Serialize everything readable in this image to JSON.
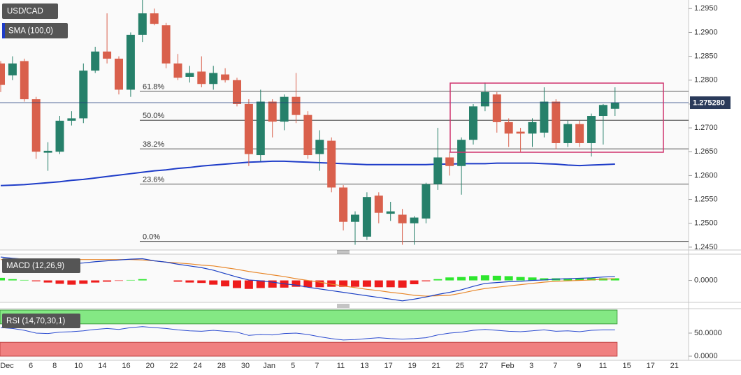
{
  "chart_data": [
    {
      "type": "candlestick",
      "title": "USD/CAD",
      "overlay_name": "SMA (100,0)",
      "up_color": "#26806a",
      "down_color": "#d9604c",
      "sma_color": "#1e3cc8",
      "ylim": [
        1.2444,
        1.2968
      ],
      "yticks": [
        {
          "value": 1.295,
          "label": "1.2950"
        },
        {
          "value": 1.29,
          "label": "1.2900"
        },
        {
          "value": 1.285,
          "label": "1.2850"
        },
        {
          "value": 1.28,
          "label": "1.2800"
        },
        {
          "value": 1.275,
          "label": "1.2750"
        },
        {
          "value": 1.27,
          "label": "1.2700"
        },
        {
          "value": 1.265,
          "label": "1.2650"
        },
        {
          "value": 1.26,
          "label": "1.2600"
        },
        {
          "value": 1.255,
          "label": "1.2550"
        },
        {
          "value": 1.25,
          "label": "1.2500"
        },
        {
          "value": 1.245,
          "label": "1.2450"
        }
      ],
      "open": [
        1.2835,
        1.281,
        1.284,
        1.276,
        1.2648,
        1.265,
        1.2715,
        1.272,
        1.282,
        1.286,
        1.2845,
        1.278,
        1.2895,
        1.294,
        1.2915,
        1.2835,
        1.2807,
        1.2818,
        1.2792,
        1.2812,
        1.28,
        1.275,
        1.2643,
        1.2755,
        1.2713,
        1.2765,
        1.2727,
        1.2645,
        1.2673,
        1.2575,
        1.2503,
        1.2472,
        1.2558,
        1.252,
        1.2518,
        1.25,
        1.251,
        1.2582,
        1.2638,
        1.262,
        1.2675,
        1.2745,
        1.277,
        1.2712,
        1.2692,
        1.2688,
        1.269,
        1.2755,
        1.2668,
        1.2708,
        1.2668,
        1.2725,
        1.274
      ],
      "high": [
        1.284,
        1.285,
        1.2845,
        1.2765,
        1.267,
        1.2725,
        1.2735,
        1.2835,
        1.287,
        1.294,
        1.285,
        1.29,
        1.297,
        1.295,
        1.292,
        1.2855,
        1.283,
        1.285,
        1.283,
        1.2825,
        1.2805,
        1.276,
        1.278,
        1.276,
        1.277,
        1.2815,
        1.2735,
        1.2695,
        1.268,
        1.258,
        1.2525,
        1.2565,
        1.2565,
        1.2545,
        1.253,
        1.2515,
        1.2585,
        1.27,
        1.265,
        1.268,
        1.275,
        1.2795,
        1.2775,
        1.272,
        1.27,
        1.272,
        1.2785,
        1.276,
        1.2715,
        1.2715,
        1.273,
        1.275,
        1.2785
      ],
      "low": [
        1.2775,
        1.28,
        1.2755,
        1.2635,
        1.261,
        1.2645,
        1.2705,
        1.271,
        1.2815,
        1.2835,
        1.277,
        1.2765,
        1.288,
        1.2915,
        1.2825,
        1.28,
        1.2795,
        1.2785,
        1.278,
        1.2795,
        1.2745,
        1.262,
        1.263,
        1.268,
        1.2695,
        1.271,
        1.2635,
        1.261,
        1.2565,
        1.2485,
        1.2455,
        1.2465,
        1.25,
        1.2505,
        1.2455,
        1.2455,
        1.25,
        1.257,
        1.26,
        1.256,
        1.2665,
        1.2735,
        1.269,
        1.266,
        1.265,
        1.266,
        1.268,
        1.2655,
        1.266,
        1.266,
        1.264,
        1.2665,
        1.2725
      ],
      "close": [
        1.279,
        1.2835,
        1.276,
        1.265,
        1.2652,
        1.2715,
        1.272,
        1.282,
        1.286,
        1.2845,
        1.278,
        1.2895,
        1.294,
        1.2918,
        1.2835,
        1.2805,
        1.2815,
        1.2792,
        1.2815,
        1.28,
        1.275,
        1.2645,
        1.2755,
        1.2713,
        1.2765,
        1.2727,
        1.2643,
        1.2675,
        1.2575,
        1.2503,
        1.2518,
        1.2555,
        1.2522,
        1.2525,
        1.25,
        1.2512,
        1.2582,
        1.2638,
        1.262,
        1.2675,
        1.2745,
        1.2775,
        1.2712,
        1.2688,
        1.2688,
        1.2712,
        1.2755,
        1.2668,
        1.2708,
        1.2668,
        1.2725,
        1.2748,
        1.2753
      ],
      "sma": [
        1.2579,
        1.258,
        1.2581,
        1.2583,
        1.2585,
        1.2587,
        1.259,
        1.2592,
        1.2595,
        1.2598,
        1.2601,
        1.2604,
        1.2607,
        1.261,
        1.2612,
        1.2615,
        1.2617,
        1.262,
        1.2622,
        1.2624,
        1.2626,
        1.2628,
        1.2629,
        1.263,
        1.263,
        1.2629,
        1.2628,
        1.2627,
        1.2626,
        1.2625,
        1.2624,
        1.2623,
        1.2623,
        1.2623,
        1.2623,
        1.2623,
        1.2623,
        1.2624,
        1.2624,
        1.2625,
        1.2625,
        1.2625,
        1.2626,
        1.2626,
        1.2626,
        1.2626,
        1.2625,
        1.2624,
        1.2622,
        1.2621,
        1.2622,
        1.2623,
        1.2624
      ],
      "fib_levels": [
        {
          "label": "61.8%",
          "value": 1.2777
        },
        {
          "label": "50.0%",
          "value": 1.2716
        },
        {
          "label": "38.2%",
          "value": 1.2656
        },
        {
          "label": "23.6%",
          "value": 1.2582
        },
        {
          "label": "0.0%",
          "value": 1.2462
        }
      ],
      "last_price": {
        "value": 1.27528,
        "label": "1.275280"
      }
    },
    {
      "type": "macd",
      "title": "MACD (12,26,9)",
      "macd_color": "#1a3fc4",
      "signal_color": "#e8872a",
      "up_color": "#2ee62e",
      "down_color": "#ee1c1c",
      "ylim": [
        -0.005,
        0.006
      ],
      "yticks": [
        {
          "value": 0,
          "label": "0.0000"
        }
      ],
      "macd": [
        0.0055,
        0.0052,
        0.005,
        0.0047,
        0.0044,
        0.0041,
        0.0039,
        0.0041,
        0.0044,
        0.0046,
        0.0048,
        0.005,
        0.0051,
        0.0046,
        0.0043,
        0.0038,
        0.0034,
        0.003,
        0.0024,
        0.0016,
        0.0008,
        0.0001,
        -0.0001,
        -0.0004,
        -0.0008,
        -0.0011,
        -0.0016,
        -0.002,
        -0.0024,
        -0.0028,
        -0.0032,
        -0.0036,
        -0.004,
        -0.0044,
        -0.0048,
        -0.0044,
        -0.0039,
        -0.0033,
        -0.0028,
        -0.0022,
        -0.0014,
        -0.0007,
        -0.0005,
        -0.0003,
        -0.0002,
        0,
        0.0001,
        0.0003,
        0.0004,
        0.0005,
        0.0006,
        0.0008,
        0.0009
      ],
      "signal": [
        0.0049,
        0.0049,
        0.0049,
        0.0049,
        0.0049,
        0.0049,
        0.0049,
        0.0049,
        0.0049,
        0.0049,
        0.0049,
        0.0049,
        0.0048,
        0.0046,
        0.0043,
        0.0041,
        0.0039,
        0.0036,
        0.0034,
        0.003,
        0.0026,
        0.0021,
        0.0017,
        0.0013,
        0.0009,
        0.0004,
        0,
        -0.0004,
        -0.0009,
        -0.0013,
        -0.0017,
        -0.0021,
        -0.0024,
        -0.0028,
        -0.0031,
        -0.0035,
        -0.0037,
        -0.0036,
        -0.0035,
        -0.003,
        -0.0024,
        -0.0019,
        -0.0016,
        -0.0013,
        -0.001,
        -0.0007,
        -0.0004,
        -0.0002,
        -0.0001,
        0,
        0.0001,
        0.0003,
        0.0004
      ],
      "histogram": [
        0.0006,
        0.0003,
        0.0001,
        -0.0002,
        -0.0005,
        -0.0008,
        -0.001,
        -0.0008,
        -0.0005,
        -0.0003,
        -0.0001,
        0.0001,
        0.0003,
        0,
        0,
        -0.0003,
        -0.0005,
        -0.0006,
        -0.001,
        -0.0014,
        -0.0018,
        -0.002,
        -0.0018,
        -0.0017,
        -0.0017,
        -0.0015,
        -0.0016,
        -0.0016,
        -0.0015,
        -0.0015,
        -0.0015,
        -0.0015,
        -0.0016,
        -0.0016,
        -0.0017,
        -0.0009,
        -0.0002,
        0.0003,
        0.0007,
        0.0008,
        0.001,
        0.0012,
        0.0011,
        0.001,
        0.0008,
        0.0007,
        0.0005,
        0.0005,
        0.0005,
        0.0005,
        0.0005,
        0.0005,
        0.0005
      ]
    },
    {
      "type": "rsi",
      "title": "RSI (14,70,30,1)",
      "line_color": "#2b4bd0",
      "upper_color": "#84e884",
      "lower_color": "#f08080",
      "upper_band": 70,
      "lower_band": 30,
      "ylim": [
        0,
        100
      ],
      "yticks": [
        {
          "value": 50,
          "label": "50.0000"
        },
        {
          "value": 0,
          "label": "0.0000"
        }
      ],
      "values": [
        62,
        60,
        56,
        50,
        49,
        52,
        53,
        55,
        58,
        60,
        58,
        62,
        64,
        62,
        60,
        57,
        55,
        54,
        56,
        54,
        52,
        45,
        47,
        46,
        49,
        50,
        47,
        42,
        38,
        35,
        36,
        38,
        40,
        38,
        37,
        38,
        40,
        46,
        50,
        52,
        56,
        58,
        56,
        54,
        53,
        55,
        57,
        54,
        55,
        53,
        56,
        57,
        57
      ],
      "x_labels": [
        "Dec",
        "6",
        "8",
        "10",
        "14",
        "16",
        "20",
        "22",
        "24",
        "28",
        "30",
        "Jan",
        "5",
        "7",
        "11",
        "13",
        "17",
        "19",
        "21",
        "25",
        "27",
        "Feb",
        "3",
        "7",
        "9",
        "11",
        "15",
        "17",
        "21"
      ]
    }
  ]
}
